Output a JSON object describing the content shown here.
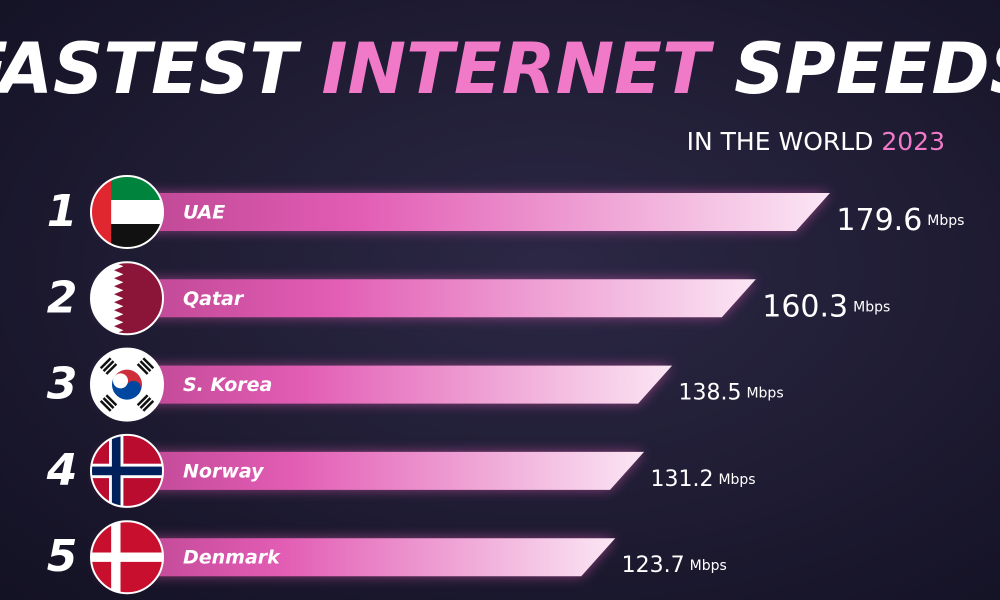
{
  "chart_data": {
    "type": "bar",
    "title": [
      "FASTEST",
      "INTERNET",
      "SPEEDS"
    ],
    "subtitle": [
      "IN THE WORLD",
      "2023"
    ],
    "ranks": [
      1,
      2,
      3,
      4,
      5
    ],
    "categories": [
      "UAE",
      "Qatar",
      "S. Korea",
      "Norway",
      "Denmark"
    ],
    "values": [
      179.6,
      160.3,
      138.5,
      131.2,
      123.7
    ],
    "unit": "Mbps",
    "color": "#e25cb4"
  }
}
